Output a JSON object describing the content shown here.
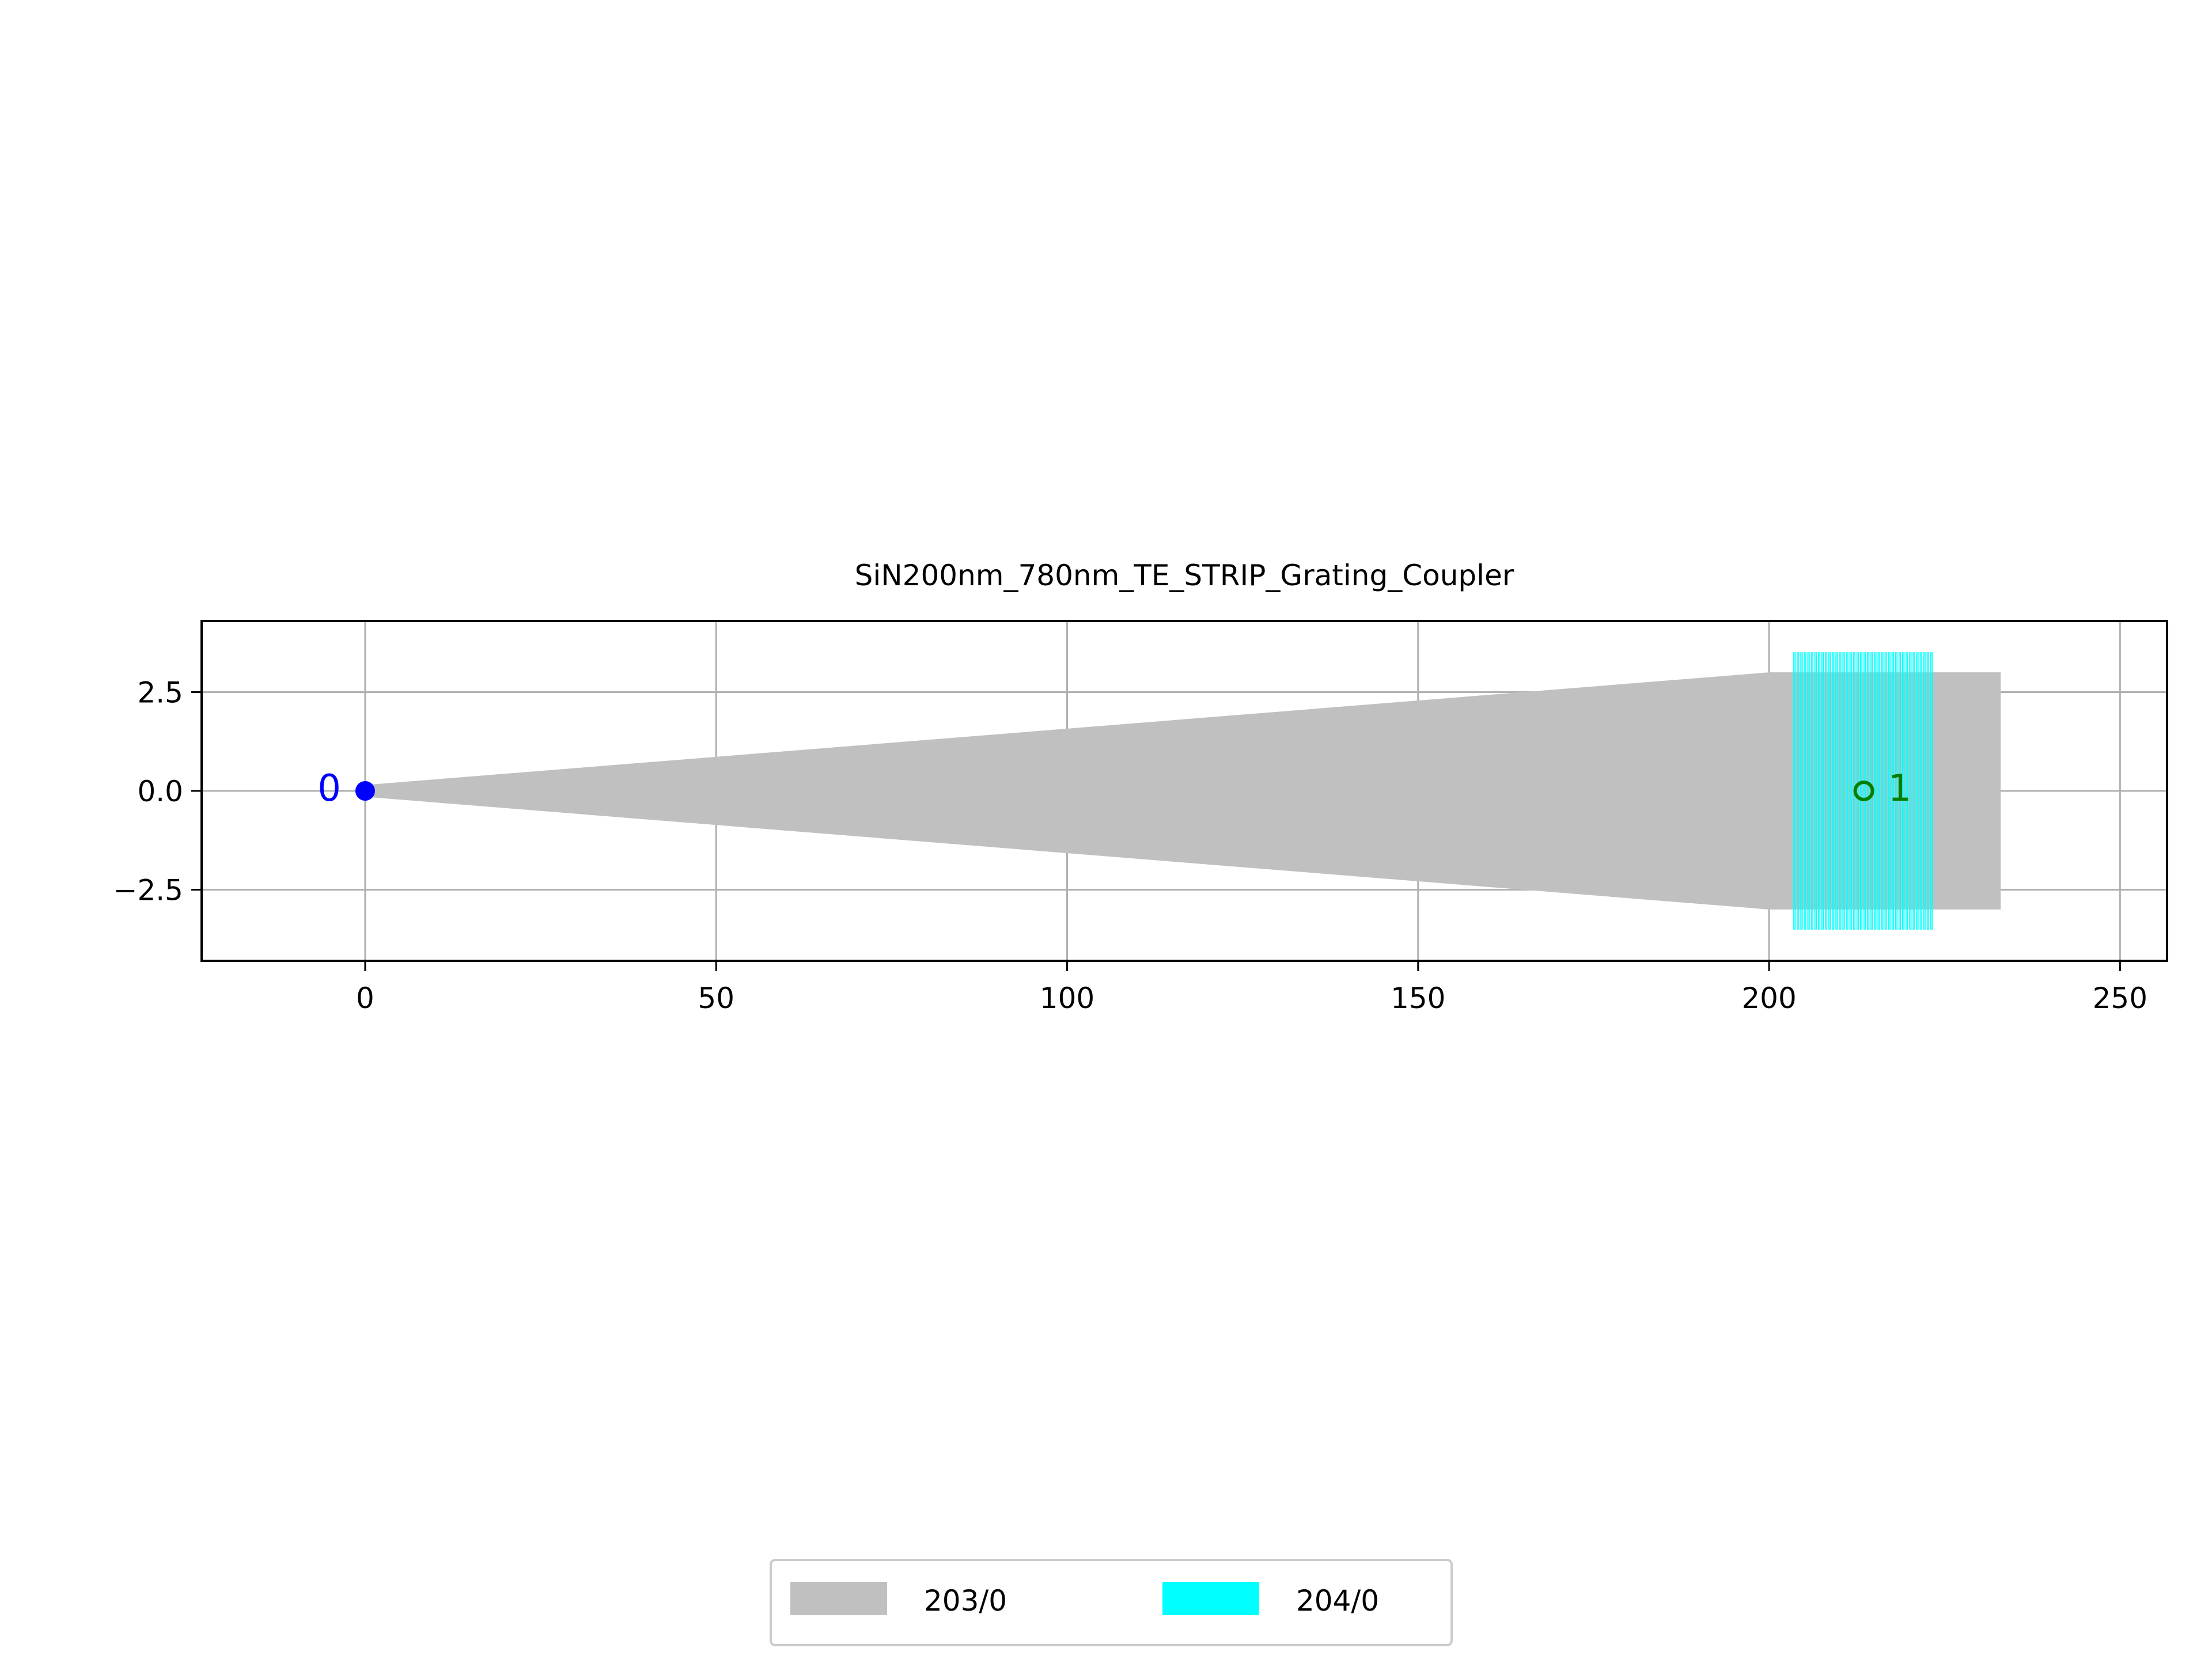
{
  "chart_data": {
    "type": "layout",
    "title": "SiN200nm_780nm_TE_STRIP_Grating_Coupler",
    "xlabel": "",
    "ylabel": "",
    "xlim": [
      -23.3,
      256.7
    ],
    "ylim": [
      -4.3,
      4.3
    ],
    "xticks": [
      {
        "value": 0,
        "label": "0"
      },
      {
        "value": 50,
        "label": "50"
      },
      {
        "value": 100,
        "label": "100"
      },
      {
        "value": 150,
        "label": "150"
      },
      {
        "value": 200,
        "label": "200"
      },
      {
        "value": 250,
        "label": "250"
      }
    ],
    "yticks": [
      {
        "value": 2.5,
        "label": "2.5"
      },
      {
        "value": 0,
        "label": "0.0"
      },
      {
        "value": -2.5,
        "label": "−2.5"
      }
    ],
    "grid": true,
    "legend_position": "bottom-center",
    "layers": [
      {
        "name": "203/0",
        "color": "#c0c0c0",
        "polygons": [
          [
            [
              0,
              0.15
            ],
            [
              200,
              3.0
            ],
            [
              233,
              3.0
            ],
            [
              233,
              -3.0
            ],
            [
              200,
              -3.0
            ],
            [
              0,
              -0.15
            ]
          ]
        ]
      },
      {
        "name": "204/0",
        "color": "#00ffff",
        "grating": {
          "x_start": 203.5,
          "x_end": 223.5,
          "y_min": -3.5,
          "y_max": 3.5,
          "period": 0.5,
          "fill": 0.5
        }
      }
    ],
    "ports": [
      {
        "label": "0",
        "x": 0,
        "y": 0,
        "color": "#0000ff",
        "marker": "filled-circle"
      },
      {
        "label": "1",
        "x": 213.5,
        "y": 0,
        "color": "#008000",
        "marker": "open-circle"
      }
    ]
  }
}
